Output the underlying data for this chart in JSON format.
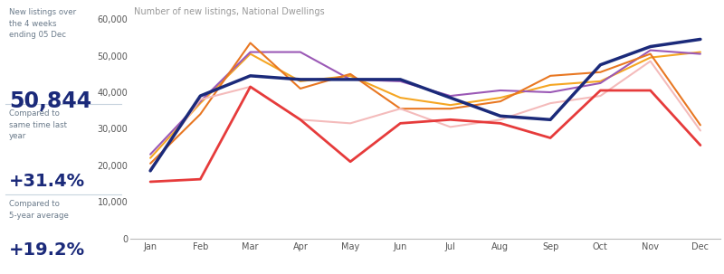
{
  "title": "Number of new listings, National Dwellings",
  "stat_box": {
    "label1": "New listings over\nthe 4 weeks\nending 05 Dec",
    "value1": "50,844",
    "label2": "Compared to\nsame time last\nyear",
    "value2": "+31.4%",
    "label3": "Compared to\n5-year average",
    "value3": "+19.2%"
  },
  "months": [
    "Jan",
    "Feb",
    "Mar",
    "Apr",
    "May",
    "Jun",
    "Jul",
    "Aug",
    "Sep",
    "Oct",
    "Nov",
    "Dec"
  ],
  "series": {
    "2016": {
      "color": "#F5A623",
      "linewidth": 1.5,
      "data": [
        22000,
        37000,
        50500,
        43000,
        44500,
        38500,
        36500,
        38500,
        42000,
        43000,
        49500,
        51000
      ]
    },
    "2017": {
      "color": "#9B59B6",
      "linewidth": 1.5,
      "data": [
        23000,
        37500,
        51000,
        51000,
        43500,
        43000,
        39000,
        40500,
        40000,
        42500,
        51500,
        50500
      ]
    },
    "2018": {
      "color": "#E87722",
      "linewidth": 1.5,
      "data": [
        20500,
        34000,
        53500,
        41000,
        45000,
        35500,
        35500,
        37500,
        44500,
        45500,
        50500,
        31000
      ]
    },
    "2019": {
      "color": "#F4BBBB",
      "linewidth": 1.5,
      "data": [
        19000,
        38000,
        41500,
        32500,
        31500,
        35500,
        30500,
        32500,
        37000,
        39000,
        48500,
        29500
      ]
    },
    "2020": {
      "color": "#E63B3B",
      "linewidth": 2.0,
      "data": [
        15500,
        16200,
        41500,
        32500,
        21000,
        31500,
        32500,
        31500,
        27500,
        40500,
        40500,
        25500
      ]
    },
    "2021": {
      "color": "#1B2A7A",
      "linewidth": 2.5,
      "data": [
        18500,
        39000,
        44500,
        43500,
        43500,
        43500,
        38500,
        33500,
        32500,
        47500,
        52500,
        54500
      ]
    }
  },
  "ylim": [
    0,
    60000
  ],
  "yticks": [
    0,
    10000,
    20000,
    30000,
    40000,
    50000,
    60000
  ],
  "ytick_labels": [
    "0",
    "10,000",
    "20,000",
    "30,000",
    "40,000",
    "50,000",
    "60,000"
  ],
  "bg_color_left": "#E8EEF4",
  "bg_color_chart": "#FFFFFF",
  "stat_text_color": "#1B2A7A",
  "stat_label_color": "#6A7A8A",
  "axis_color": "#BBBBBB",
  "title_color": "#999999"
}
